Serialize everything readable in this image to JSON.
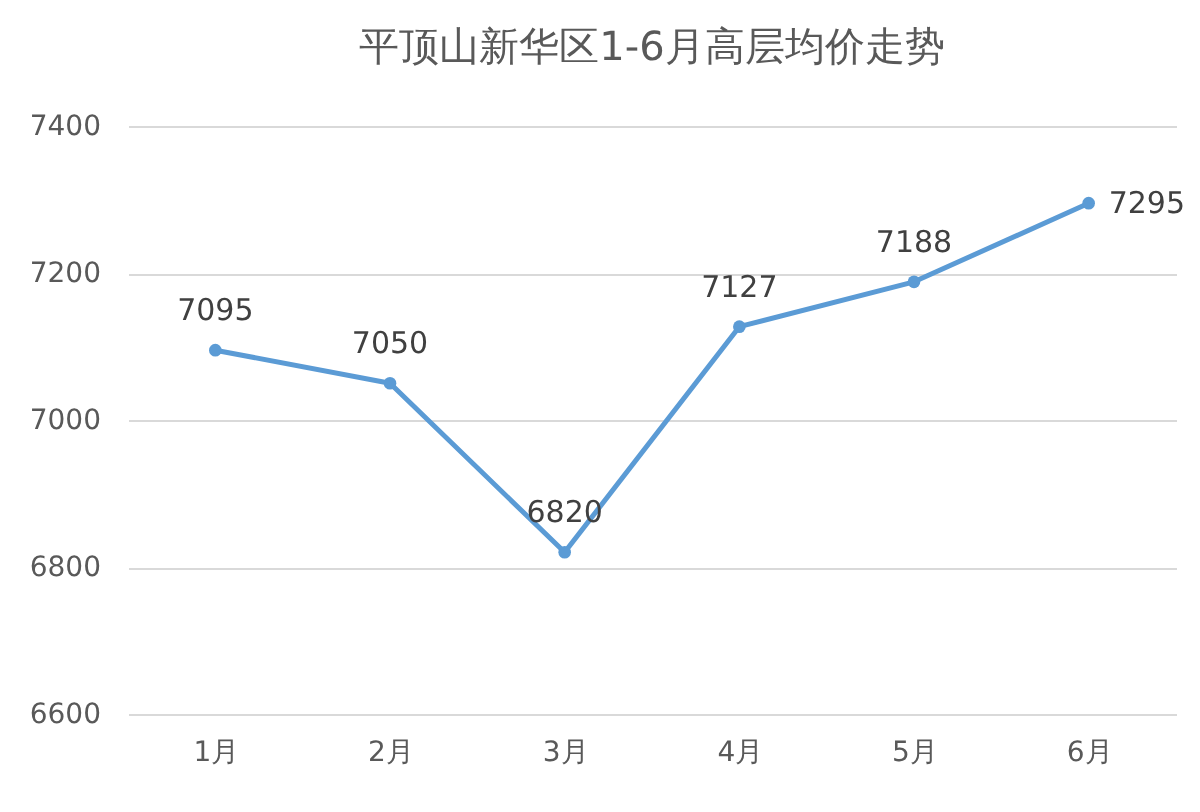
{
  "chart_data": {
    "type": "line",
    "title": "平顶山新华区1-6月高层均价走势",
    "categories": [
      "1月",
      "2月",
      "3月",
      "4月",
      "5月",
      "6月"
    ],
    "values": [
      7095,
      7050,
      6820,
      7127,
      7188,
      7295
    ],
    "color": "#5b9bd5",
    "ylim": [
      6600,
      7400
    ],
    "yticks": [
      6600,
      6800,
      7000,
      7200,
      7400
    ],
    "grid": "y",
    "marker": "circle",
    "line_style": "solid",
    "data_labels": true
  }
}
